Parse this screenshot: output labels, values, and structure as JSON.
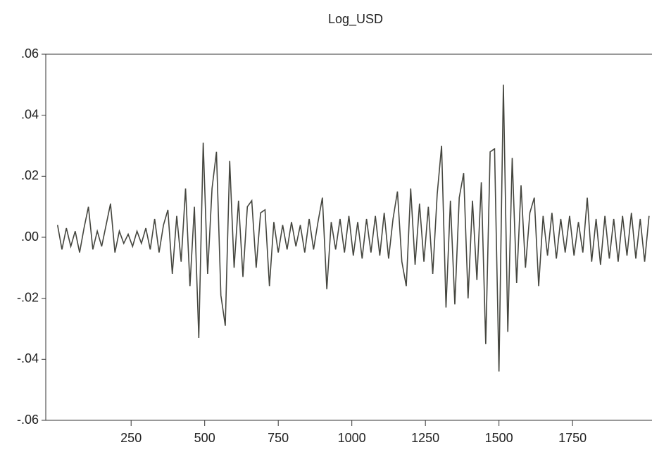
{
  "chart_data": {
    "type": "line",
    "title": "Log_USD",
    "x": [
      0,
      15,
      30,
      45,
      60,
      75,
      90,
      105,
      120,
      135,
      150,
      165,
      180,
      195,
      210,
      225,
      240,
      255,
      270,
      285,
      300,
      315,
      330,
      345,
      360,
      375,
      390,
      405,
      420,
      435,
      450,
      465,
      480,
      495,
      510,
      525,
      540,
      555,
      570,
      585,
      600,
      615,
      630,
      645,
      660,
      675,
      690,
      705,
      720,
      735,
      750,
      765,
      780,
      795,
      810,
      825,
      840,
      855,
      870,
      885,
      900,
      915,
      930,
      945,
      960,
      975,
      990,
      1005,
      1020,
      1035,
      1050,
      1065,
      1080,
      1095,
      1110,
      1125,
      1140,
      1155,
      1170,
      1185,
      1200,
      1215,
      1230,
      1245,
      1260,
      1275,
      1290,
      1305,
      1320,
      1335,
      1350,
      1365,
      1380,
      1395,
      1410,
      1425,
      1440,
      1455,
      1470,
      1485,
      1500,
      1515,
      1530,
      1545,
      1560,
      1575,
      1590,
      1605,
      1620,
      1635,
      1650,
      1665,
      1680,
      1695,
      1710,
      1725,
      1740,
      1755,
      1770,
      1785,
      1800,
      1815,
      1830,
      1845,
      1860,
      1875,
      1890,
      1905,
      1920,
      1935,
      1950,
      1965,
      1980,
      1995,
      2010
    ],
    "series": [
      {
        "color": "#45463f",
        "values": [
          0.004,
          -0.004,
          0.003,
          -0.003,
          0.002,
          -0.005,
          0.003,
          0.01,
          -0.004,
          0.002,
          -0.003,
          0.004,
          0.011,
          -0.005,
          0.002,
          -0.002,
          0.001,
          -0.003,
          0.002,
          -0.002,
          0.003,
          -0.004,
          0.006,
          -0.005,
          0.004,
          0.009,
          -0.012,
          0.007,
          -0.008,
          0.016,
          -0.016,
          0.01,
          -0.033,
          0.031,
          -0.012,
          0.016,
          0.028,
          -0.019,
          -0.029,
          0.025,
          -0.01,
          0.012,
          -0.013,
          0.01,
          0.012,
          -0.01,
          0.008,
          0.009,
          -0.016,
          0.005,
          -0.005,
          0.004,
          -0.004,
          0.005,
          -0.003,
          0.004,
          -0.005,
          0.006,
          -0.004,
          0.005,
          0.013,
          -0.017,
          0.005,
          -0.004,
          0.006,
          -0.005,
          0.007,
          -0.006,
          0.005,
          -0.007,
          0.006,
          -0.005,
          0.007,
          -0.006,
          0.008,
          -0.007,
          0.006,
          0.015,
          -0.008,
          -0.016,
          0.016,
          -0.009,
          0.011,
          -0.008,
          0.01,
          -0.012,
          0.014,
          0.03,
          -0.023,
          0.012,
          -0.022,
          0.013,
          0.021,
          -0.02,
          0.012,
          -0.014,
          0.018,
          -0.035,
          0.028,
          0.029,
          -0.044,
          0.05,
          -0.031,
          0.026,
          -0.015,
          0.017,
          -0.01,
          0.008,
          0.013,
          -0.016,
          0.007,
          -0.006,
          0.008,
          -0.007,
          0.006,
          -0.005,
          0.007,
          -0.006,
          0.005,
          -0.005,
          0.013,
          -0.008,
          0.006,
          -0.009,
          0.007,
          -0.007,
          0.006,
          -0.008,
          0.007,
          -0.006,
          0.008,
          -0.007,
          0.006,
          -0.008,
          0.007
        ]
      }
    ],
    "xlim": [
      -40,
      2020
    ],
    "xticks": [
      250,
      500,
      750,
      1000,
      1250,
      1500,
      1750
    ],
    "ylim": [
      -0.06,
      0.06
    ],
    "yticks": [
      {
        "value": -0.06,
        "label": "-.06"
      },
      {
        "value": -0.04,
        "label": "-.04"
      },
      {
        "value": -0.02,
        "label": "-.02"
      },
      {
        "value": 0,
        "label": ".00"
      },
      {
        "value": 0.02,
        "label": ".02"
      },
      {
        "value": 0.04,
        "label": ".04"
      },
      {
        "value": 0.06,
        "label": ".06"
      }
    ]
  }
}
